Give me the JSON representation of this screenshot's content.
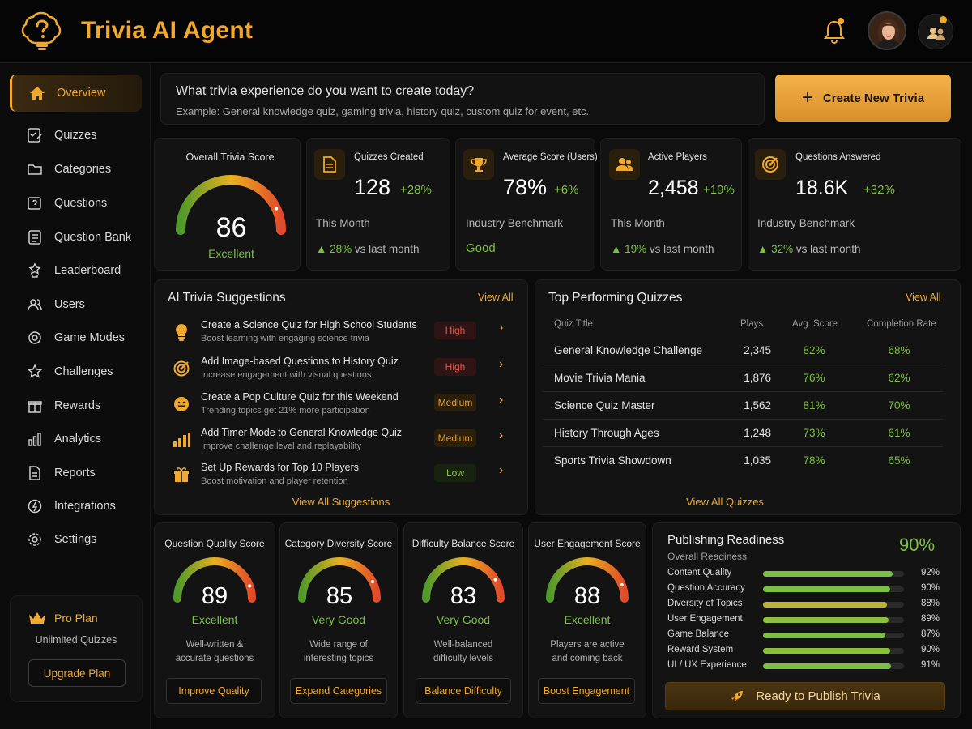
{
  "app": {
    "title": "Trivia AI Agent"
  },
  "sidebar": {
    "items": [
      {
        "label": "Overview",
        "icon": "home-icon"
      },
      {
        "label": "Quizzes",
        "icon": "quiz-icon"
      },
      {
        "label": "Categories",
        "icon": "folder-icon"
      },
      {
        "label": "Questions",
        "icon": "question-icon"
      },
      {
        "label": "Question Bank",
        "icon": "bank-icon"
      },
      {
        "label": "Leaderboard",
        "icon": "leaderboard-icon"
      },
      {
        "label": "Users",
        "icon": "users-icon"
      },
      {
        "label": "Game Modes",
        "icon": "gamepad-icon"
      },
      {
        "label": "Challenges",
        "icon": "star-icon"
      },
      {
        "label": "Rewards",
        "icon": "gift-icon"
      },
      {
        "label": "Analytics",
        "icon": "bar-chart-icon"
      },
      {
        "label": "Reports",
        "icon": "report-icon"
      },
      {
        "label": "Integrations",
        "icon": "plug-icon"
      },
      {
        "label": "Settings",
        "icon": "gear-icon"
      }
    ],
    "plan": {
      "title": "Pro Plan",
      "subtitle": "Unlimited Quizzes",
      "upgrade_label": "Upgrade Plan"
    }
  },
  "prompt": {
    "question": "What trivia experience do you want to create today?",
    "example": "Example: General knowledge quiz, gaming trivia, history quiz, custom quiz for event, etc.",
    "create_label": "Create New Trivia"
  },
  "overall": {
    "title": "Overall Trivia Score",
    "value": "86",
    "label": "Excellent",
    "score": 86
  },
  "stats": [
    {
      "title": "Quizzes Created",
      "value": "128",
      "delta": "+28%",
      "sub": "This Month",
      "footer_value": "28%",
      "footer_text": "vs last month"
    },
    {
      "title": "Average Score (Users)",
      "value": "78%",
      "delta": "+6%",
      "sub": "Industry Benchmark",
      "footer_text": "Good"
    },
    {
      "title": "Active Players",
      "value": "2,458",
      "delta": "+19%",
      "sub": "This Month",
      "footer_value": "19%",
      "footer_text": "vs last month"
    },
    {
      "title": "Questions Answered",
      "value": "18.6K",
      "delta": "+32%",
      "sub": "Industry Benchmark",
      "footer_value": "32%",
      "footer_text": "vs last month"
    }
  ],
  "suggestions": {
    "title": "AI Trivia Suggestions",
    "view_all": "View All",
    "footer_link": "View All Suggestions",
    "items": [
      {
        "title": "Create a Science Quiz for High School Students",
        "desc": "Boost learning with engaging science trivia",
        "priority": "High",
        "icon": "lightbulb-icon"
      },
      {
        "title": "Add Image-based Questions to History Quiz",
        "desc": "Increase engagement with visual questions",
        "priority": "High",
        "icon": "target-icon"
      },
      {
        "title": "Create a Pop Culture Quiz for this Weekend",
        "desc": "Trending topics get 21% more participation",
        "priority": "Medium",
        "icon": "smiley-icon"
      },
      {
        "title": "Add Timer Mode to General Knowledge Quiz",
        "desc": "Improve challenge level and replayability",
        "priority": "Medium",
        "icon": "bar-chart-icon"
      },
      {
        "title": "Set Up Rewards for Top 10 Players",
        "desc": "Boost motivation and player retention",
        "priority": "Low",
        "icon": "gift-icon"
      }
    ]
  },
  "top_quizzes": {
    "title": "Top Performing Quizzes",
    "view_all": "View All",
    "footer_link": "View All Quizzes",
    "columns": [
      "Quiz Title",
      "Plays",
      "Avg. Score",
      "Completion Rate"
    ],
    "rows": [
      {
        "name": "General Knowledge Challenge",
        "plays": "2,345",
        "avg": "82%",
        "completion": "68%"
      },
      {
        "name": "Movie Trivia Mania",
        "plays": "1,876",
        "avg": "76%",
        "completion": "62%"
      },
      {
        "name": "Science Quiz Master",
        "plays": "1,562",
        "avg": "81%",
        "completion": "70%"
      },
      {
        "name": "History Through Ages",
        "plays": "1,248",
        "avg": "73%",
        "completion": "61%"
      },
      {
        "name": "Sports Trivia Showdown",
        "plays": "1,035",
        "avg": "78%",
        "completion": "65%"
      }
    ]
  },
  "scores": [
    {
      "title": "Question Quality Score",
      "value": "89",
      "label": "Excellent",
      "desc1": "Well-written &",
      "desc2": "accurate questions",
      "action": "Improve Quality",
      "score": 89
    },
    {
      "title": "Category Diversity Score",
      "value": "85",
      "label": "Very Good",
      "desc1": "Wide range of",
      "desc2": "interesting topics",
      "action": "Expand Categories",
      "score": 85
    },
    {
      "title": "Difficulty Balance Score",
      "value": "83",
      "label": "Very Good",
      "desc1": "Well-balanced",
      "desc2": "difficulty levels",
      "action": "Balance Difficulty",
      "score": 83
    },
    {
      "title": "User Engagement Score",
      "value": "88",
      "label": "Excellent",
      "desc1": "Players are active",
      "desc2": "and coming back",
      "action": "Boost Engagement",
      "score": 88
    }
  ],
  "readiness": {
    "title": "Publishing Readiness",
    "subtitle": "Overall Readiness",
    "percent": "90%",
    "button_label": "Ready to Publish Trivia",
    "items": [
      {
        "label": "Content Quality",
        "pct": "92%",
        "value": 92,
        "color": "#7bc043"
      },
      {
        "label": "Question Accuracy",
        "pct": "90%",
        "value": 90,
        "color": "#7bc043"
      },
      {
        "label": "Diversity of Topics",
        "pct": "88%",
        "value": 88,
        "color": "#b9b33a"
      },
      {
        "label": "User Engagement",
        "pct": "89%",
        "value": 89,
        "color": "#8dbf3f"
      },
      {
        "label": "Game Balance",
        "pct": "87%",
        "value": 87,
        "color": "#7bc043"
      },
      {
        "label": "Reward System",
        "pct": "90%",
        "value": 90,
        "color": "#8dbf3f"
      },
      {
        "label": "UI / UX Experience",
        "pct": "91%",
        "value": 91,
        "color": "#7bc043"
      }
    ]
  },
  "colors": {
    "accent": "#f0a92c",
    "positive": "#7bc043",
    "danger": "#e65a4a",
    "background": "#0a0a0a",
    "card": "#131313"
  }
}
